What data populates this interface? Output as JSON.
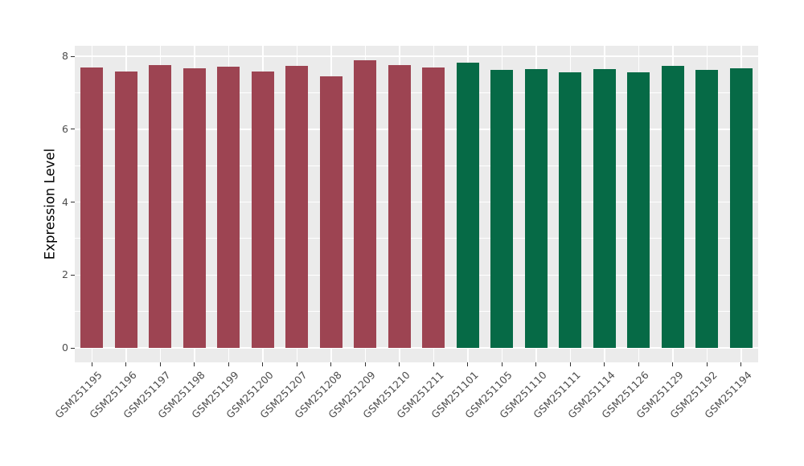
{
  "chart_data": {
    "type": "bar",
    "title": "",
    "xlabel": "",
    "ylabel": "Expression Level",
    "categories": [
      "GSM251195",
      "GSM251196",
      "GSM251197",
      "GSM251198",
      "GSM251199",
      "GSM251200",
      "GSM251207",
      "GSM251208",
      "GSM251209",
      "GSM251210",
      "GSM251211",
      "GSM251101",
      "GSM251105",
      "GSM251110",
      "GSM251111",
      "GSM251114",
      "GSM251126",
      "GSM251129",
      "GSM251192",
      "GSM251194"
    ],
    "values": [
      7.69,
      7.59,
      7.76,
      7.68,
      7.72,
      7.59,
      7.73,
      7.44,
      7.89,
      7.76,
      7.7,
      7.82,
      7.62,
      7.64,
      7.55,
      7.64,
      7.57,
      7.73,
      7.62,
      7.67
    ],
    "groups": [
      "A",
      "A",
      "A",
      "A",
      "A",
      "A",
      "A",
      "A",
      "A",
      "A",
      "A",
      "B",
      "B",
      "B",
      "B",
      "B",
      "B",
      "B",
      "B",
      "B"
    ],
    "group_colors": {
      "A": "#9D4452",
      "B": "#066A46"
    },
    "yticks": [
      0,
      2,
      4,
      6,
      8
    ],
    "ylim": [
      0,
      8.29
    ],
    "grid": "white major+minor on grey panel",
    "legend_position": "none"
  },
  "style": {
    "background": "#FFFFFF",
    "panel_bg": "#EBEBEB",
    "grid_color": "#FFFFFF",
    "tick_color": "#333333",
    "tick_label_color": "#4D4D4D",
    "axis_title_color": "#000000"
  }
}
